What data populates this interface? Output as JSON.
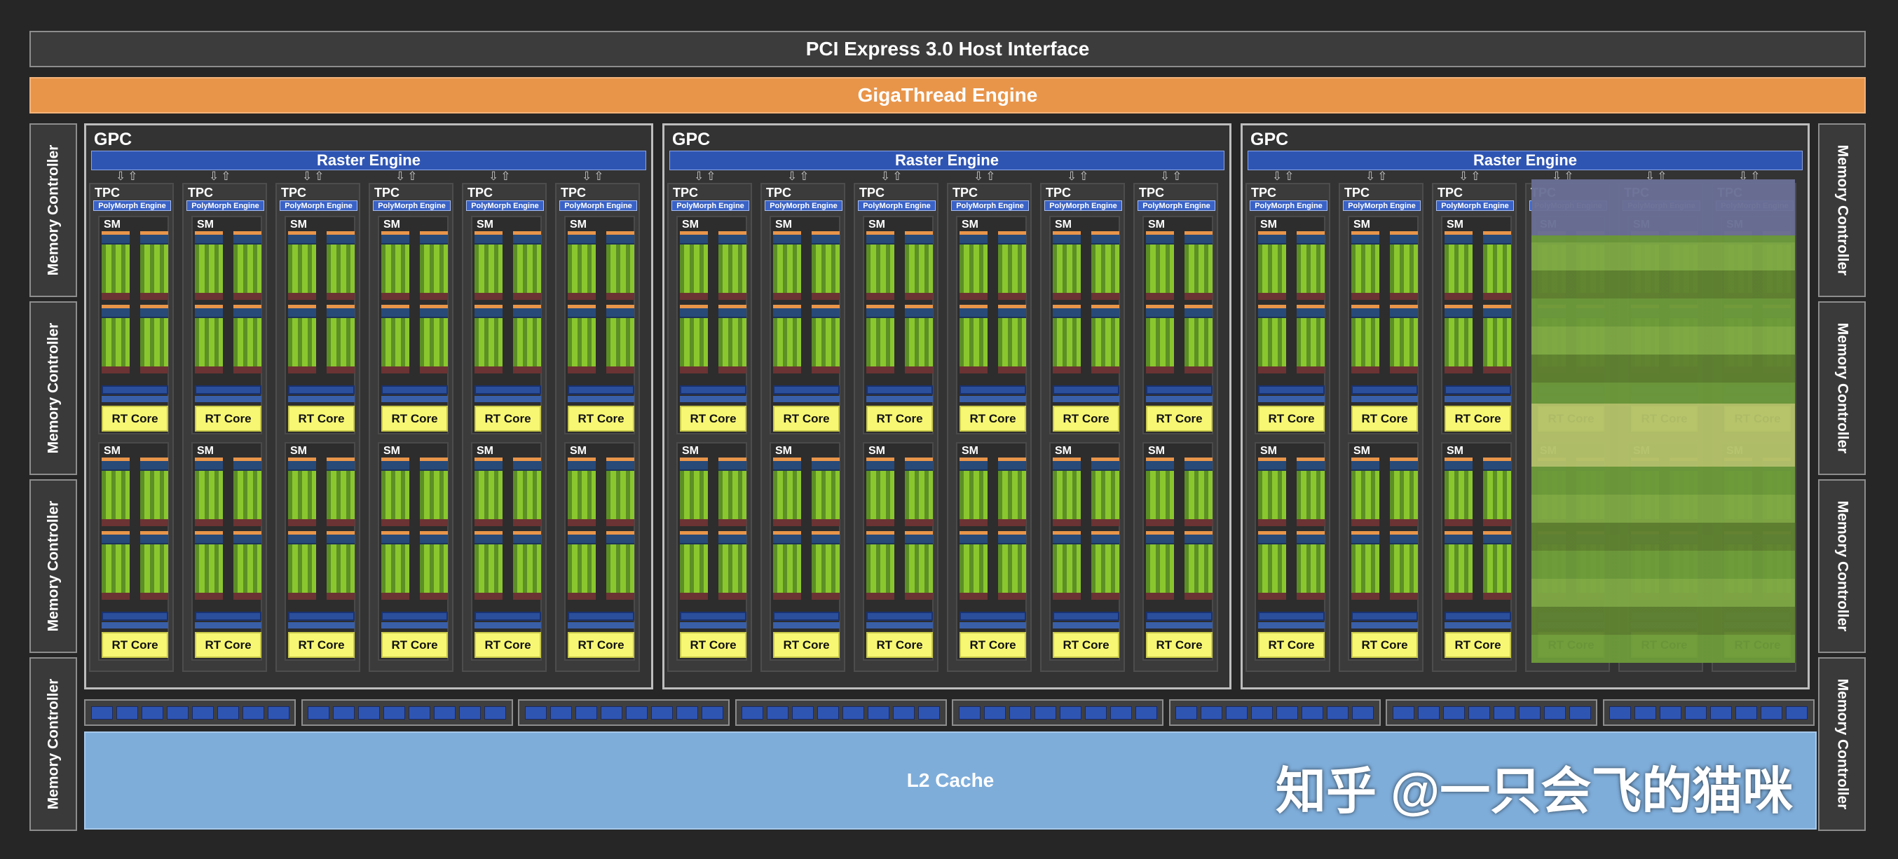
{
  "header": {
    "pcie": "PCI Express 3.0 Host Interface",
    "gigathread": "GigaThread Engine"
  },
  "memory_controller_label": "Memory Controller",
  "gpc": {
    "label": "GPC",
    "raster_engine": "Raster Engine",
    "count": 3
  },
  "tpc": {
    "label": "TPC",
    "polymorph_engine": "PolyMorph Engine",
    "per_gpc": 6
  },
  "sm": {
    "label": "SM",
    "per_tpc": 2
  },
  "rt_core_label": "RT Core",
  "l2_cache": "L2 Cache",
  "watermark": "知乎 @一只会飞的猫咪",
  "colors": {
    "background": "#262626",
    "gigathread": "#e8954a",
    "raster_engine": "#2f55b3",
    "cuda_cores": "#8ac72e",
    "rt_core": "#f7f774",
    "l2_cache": "#7eadda"
  }
}
